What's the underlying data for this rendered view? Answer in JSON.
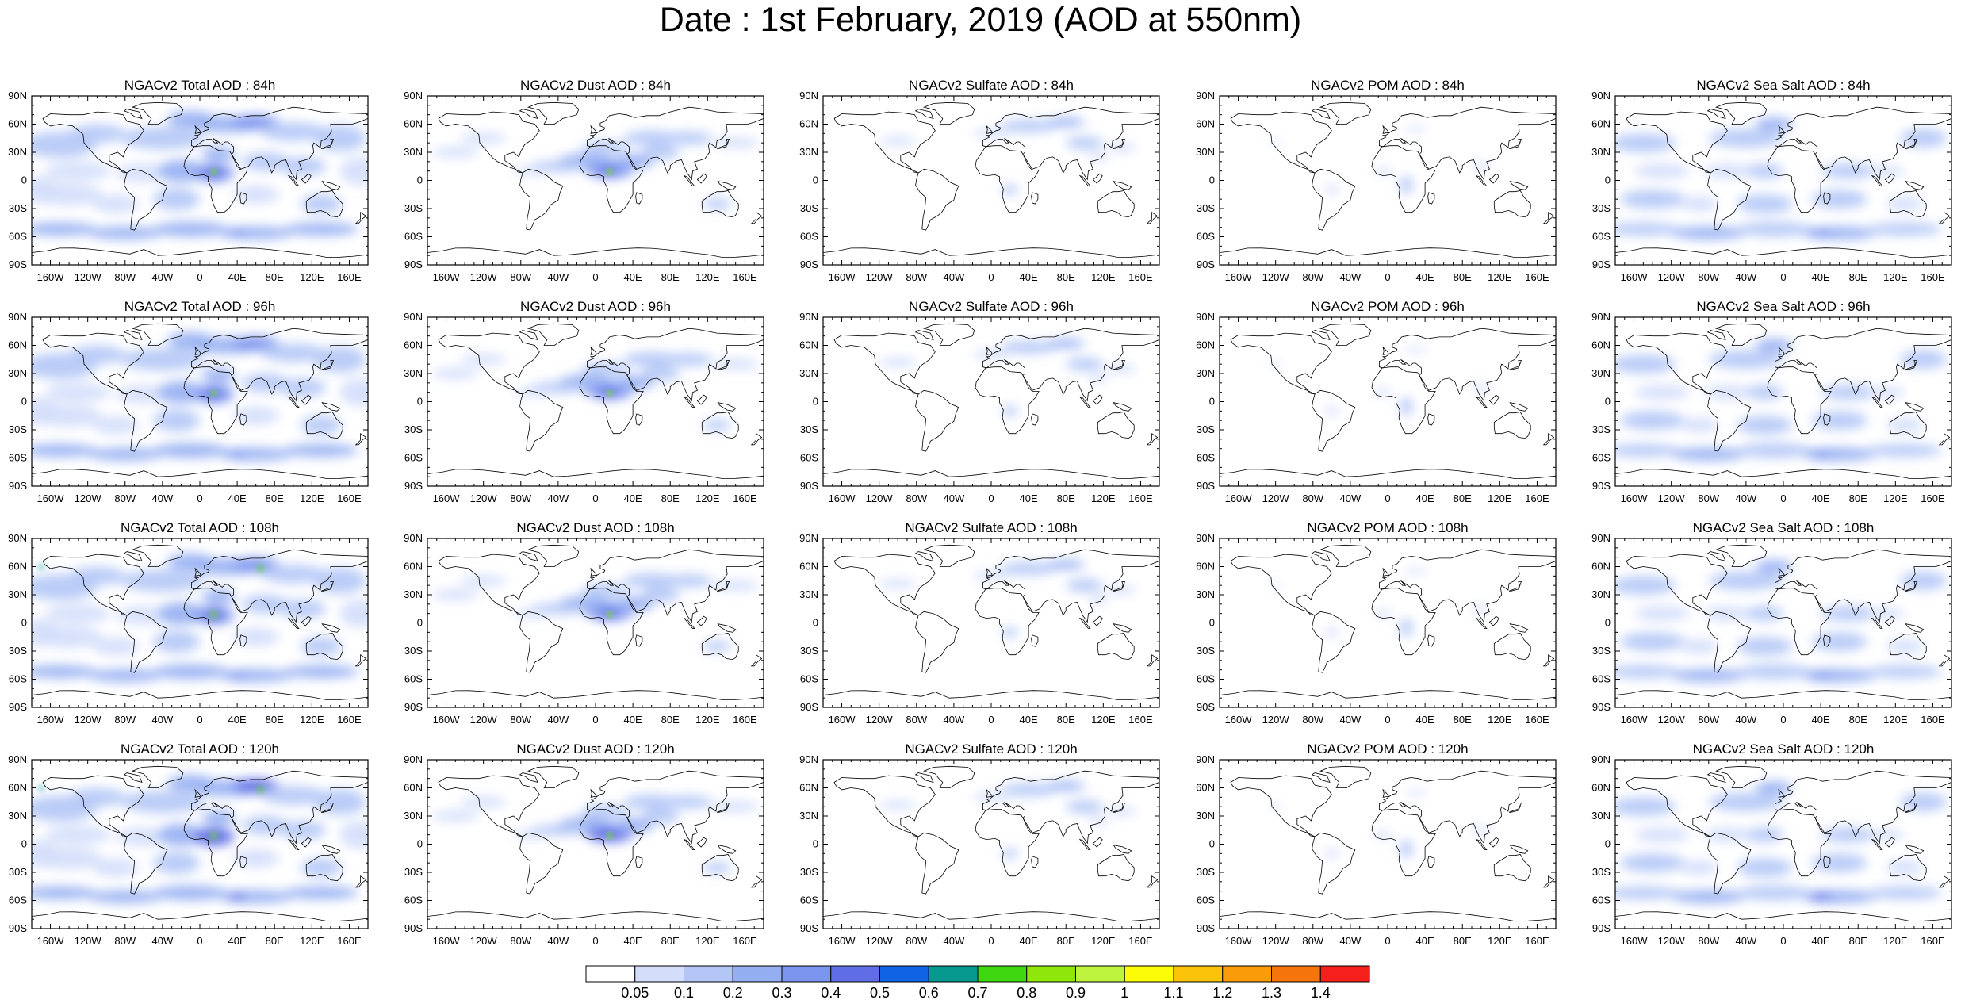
{
  "title": "Date : 1st February, 2019 (AOD at 550nm)",
  "rows": [
    "84h",
    "96h",
    "108h",
    "120h"
  ],
  "panels": [
    [
      "NGACv2 Total AOD : 84h",
      "NGACv2 Dust AOD : 84h",
      "NGACv2 Sulfate AOD : 84h",
      "NGACv2 POM AOD : 84h",
      "NGACv2 Sea Salt AOD : 84h"
    ],
    [
      "NGACv2 Total AOD : 96h",
      "NGACv2 Dust AOD : 96h",
      "NGACv2 Sulfate AOD : 96h",
      "NGACv2 POM AOD : 96h",
      "NGACv2 Sea Salt AOD : 96h"
    ],
    [
      "NGACv2 Total AOD : 108h",
      "NGACv2 Dust AOD : 108h",
      "NGACv2 Sulfate AOD : 108h",
      "NGACv2 POM AOD : 108h",
      "NGACv2 Sea Salt AOD : 108h"
    ],
    [
      "NGACv2 Total AOD : 120h",
      "NGACv2 Dust AOD : 120h",
      "NGACv2 Sulfate AOD : 120h",
      "NGACv2 POM AOD : 120h",
      "NGACv2 Sea Salt  AOD : 120h"
    ]
  ],
  "lat_labels": [
    "90N",
    "60N",
    "30N",
    "0",
    "30S",
    "60S",
    "90S"
  ],
  "lon_labels": [
    "160W",
    "120W",
    "80W",
    "40W",
    "0",
    "40E",
    "80E",
    "120E",
    "160E"
  ],
  "colorbar": {
    "labels": [
      "0.05",
      "0.1",
      "0.2",
      "0.3",
      "0.4",
      "0.5",
      "0.6",
      "0.7",
      "0.8",
      "0.9",
      "1",
      "1.1",
      "1.2",
      "1.3",
      "1.4"
    ],
    "colors": [
      "#ffffff",
      "#d4defb",
      "#b4c6f6",
      "#94aef2",
      "#7c95ee",
      "#5f6ee5",
      "#0f64e6",
      "#079890",
      "#3fd810",
      "#8ee60a",
      "#bef43d",
      "#fcfc08",
      "#fbc20a",
      "#fa9b09",
      "#f5740b",
      "#f5201b"
    ]
  }
}
